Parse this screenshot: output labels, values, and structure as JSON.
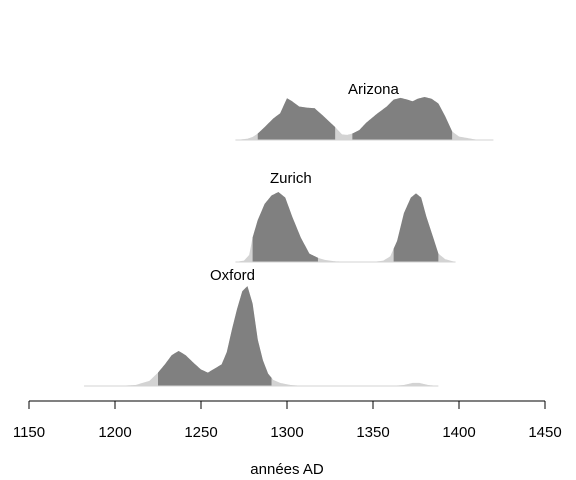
{
  "chart_data": {
    "type": "area",
    "title": "",
    "xlabel": "années AD",
    "ylabel": "",
    "xlim": [
      1150,
      1450
    ],
    "x_ticks": [
      1150,
      1200,
      1250,
      1300,
      1350,
      1400,
      1450
    ],
    "grid": false,
    "colors": {
      "highlight": "#808080",
      "tail": "#d3d3d3"
    },
    "series": [
      {
        "name": "Arizona",
        "range": [
          1270,
          1420
        ],
        "hpd_intervals": [
          [
            1283,
            1328
          ],
          [
            1338,
            1396
          ]
        ],
        "density": [
          [
            1270,
            0
          ],
          [
            1277,
            0.03
          ],
          [
            1280,
            0.07
          ],
          [
            1283,
            0.15
          ],
          [
            1287,
            0.3
          ],
          [
            1292,
            0.5
          ],
          [
            1296,
            0.62
          ],
          [
            1300,
            0.97
          ],
          [
            1303,
            0.9
          ],
          [
            1307,
            0.78
          ],
          [
            1312,
            0.75
          ],
          [
            1316,
            0.74
          ],
          [
            1320,
            0.6
          ],
          [
            1324,
            0.45
          ],
          [
            1328,
            0.3
          ],
          [
            1332,
            0.13
          ],
          [
            1335,
            0.12
          ],
          [
            1338,
            0.15
          ],
          [
            1342,
            0.23
          ],
          [
            1346,
            0.4
          ],
          [
            1352,
            0.6
          ],
          [
            1358,
            0.78
          ],
          [
            1362,
            0.94
          ],
          [
            1366,
            0.98
          ],
          [
            1370,
            0.94
          ],
          [
            1373,
            0.9
          ],
          [
            1376,
            0.96
          ],
          [
            1380,
            1.0
          ],
          [
            1384,
            0.96
          ],
          [
            1388,
            0.85
          ],
          [
            1392,
            0.55
          ],
          [
            1396,
            0.2
          ],
          [
            1400,
            0.08
          ],
          [
            1410,
            0.01
          ],
          [
            1420,
            0
          ]
        ]
      },
      {
        "name": "Zurich",
        "range": [
          1270,
          1398
        ],
        "hpd_intervals": [
          [
            1280,
            1318
          ],
          [
            1362,
            1388
          ]
        ],
        "density": [
          [
            1270,
            0
          ],
          [
            1275,
            0.02
          ],
          [
            1278,
            0.1
          ],
          [
            1280,
            0.35
          ],
          [
            1283,
            0.6
          ],
          [
            1287,
            0.83
          ],
          [
            1291,
            0.95
          ],
          [
            1295,
            1.0
          ],
          [
            1299,
            0.92
          ],
          [
            1303,
            0.65
          ],
          [
            1308,
            0.35
          ],
          [
            1313,
            0.12
          ],
          [
            1318,
            0.06
          ],
          [
            1322,
            0.03
          ],
          [
            1328,
            0.01
          ],
          [
            1340,
            0
          ],
          [
            1350,
            0
          ],
          [
            1356,
            0.02
          ],
          [
            1360,
            0.08
          ],
          [
            1364,
            0.3
          ],
          [
            1368,
            0.7
          ],
          [
            1372,
            0.92
          ],
          [
            1375,
            0.98
          ],
          [
            1378,
            0.92
          ],
          [
            1381,
            0.65
          ],
          [
            1385,
            0.35
          ],
          [
            1388,
            0.12
          ],
          [
            1392,
            0.04
          ],
          [
            1398,
            0
          ]
        ]
      },
      {
        "name": "Oxford",
        "range": [
          1182,
          1388
        ],
        "hpd_intervals": [
          [
            1225,
            1291
          ]
        ],
        "density": [
          [
            1182,
            0
          ],
          [
            1200,
            0
          ],
          [
            1212,
            0.01
          ],
          [
            1220,
            0.05
          ],
          [
            1225,
            0.13
          ],
          [
            1229,
            0.21
          ],
          [
            1233,
            0.3
          ],
          [
            1237,
            0.34
          ],
          [
            1241,
            0.3
          ],
          [
            1246,
            0.22
          ],
          [
            1250,
            0.16
          ],
          [
            1254,
            0.13
          ],
          [
            1258,
            0.17
          ],
          [
            1262,
            0.21
          ],
          [
            1265,
            0.33
          ],
          [
            1268,
            0.55
          ],
          [
            1271,
            0.75
          ],
          [
            1274,
            0.92
          ],
          [
            1277,
            0.97
          ],
          [
            1280,
            0.8
          ],
          [
            1283,
            0.45
          ],
          [
            1286,
            0.25
          ],
          [
            1289,
            0.12
          ],
          [
            1292,
            0.06
          ],
          [
            1296,
            0.03
          ],
          [
            1302,
            0.01
          ],
          [
            1310,
            0
          ],
          [
            1360,
            0
          ],
          [
            1368,
            0.01
          ],
          [
            1373,
            0.03
          ],
          [
            1377,
            0.03
          ],
          [
            1382,
            0.01
          ],
          [
            1388,
            0
          ]
        ]
      }
    ]
  }
}
